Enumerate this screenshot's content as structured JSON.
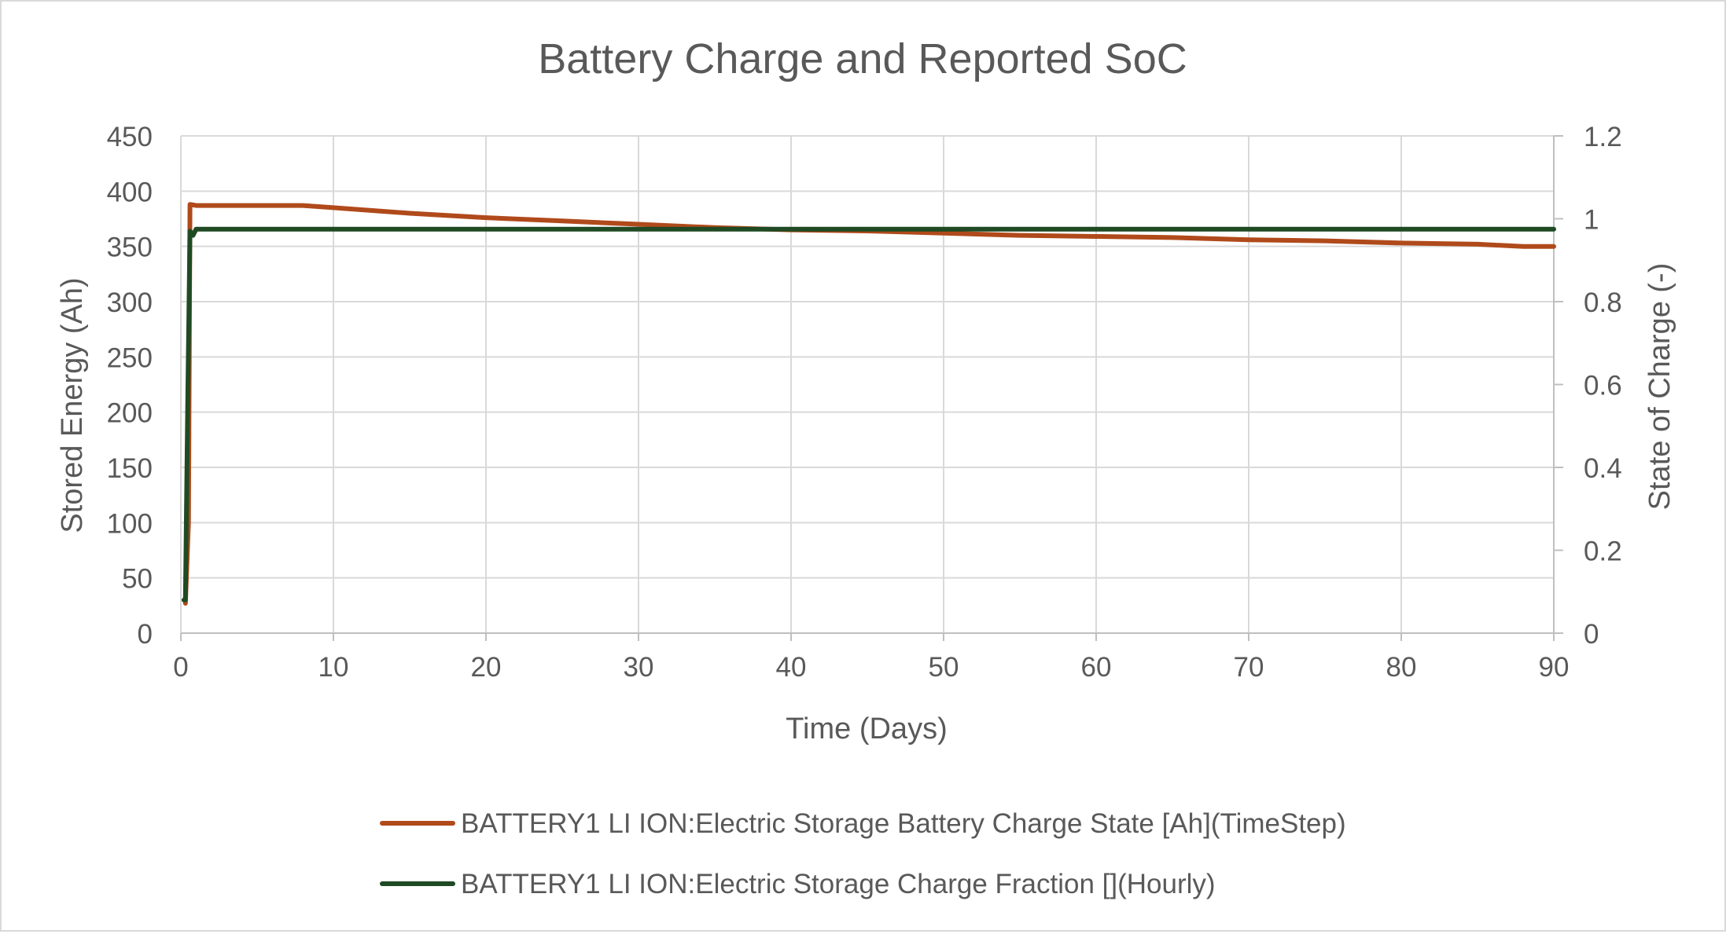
{
  "chart_data": {
    "type": "line",
    "title": "Battery Charge and Reported SoC",
    "xlabel": "Time (Days)",
    "ylabel": "Stored Energy (Ah)",
    "y2label": "State of Charge (-)",
    "xlim": [
      0,
      90
    ],
    "ylim": [
      0,
      450
    ],
    "y2lim": [
      0,
      1.2
    ],
    "x_ticks": [
      0,
      10,
      20,
      30,
      40,
      50,
      60,
      70,
      80,
      90
    ],
    "y_ticks": [
      0,
      50,
      100,
      150,
      200,
      250,
      300,
      350,
      400,
      450
    ],
    "y2_ticks": [
      "0",
      "0.2",
      "0.4",
      "0.6",
      "0.8",
      "1",
      "1.2"
    ],
    "grid": true,
    "legend_position": "bottom",
    "colors": {
      "charge_state": "#b04a1b",
      "charge_fraction": "#1f4a23",
      "grid": "#d9d9d9",
      "axis": "#bfbfbf",
      "text": "#595959"
    },
    "series": [
      {
        "name": "BATTERY1 LI ION:Electric Storage Battery Charge State [Ah](TimeStep)",
        "axis": "left",
        "color_key": "charge_state",
        "x": [
          0.3,
          0.5,
          0.6,
          1,
          5,
          8,
          9,
          10,
          15,
          20,
          25,
          30,
          35,
          40,
          45,
          50,
          55,
          60,
          65,
          70,
          75,
          80,
          85,
          88,
          89,
          90
        ],
        "y": [
          27,
          100,
          388,
          387,
          387,
          387,
          386,
          385,
          380,
          376,
          373,
          370,
          367,
          365,
          364,
          362,
          360,
          359,
          358,
          356,
          355,
          353,
          352,
          350,
          350,
          350
        ]
      },
      {
        "name": "BATTERY1 LI ION:Electric Storage Charge Fraction [](Hourly)",
        "axis": "right",
        "color_key": "charge_fraction",
        "x": [
          0.2,
          0.3,
          0.45,
          0.6,
          0.8,
          1.0,
          2,
          10,
          20,
          30,
          40,
          50,
          60,
          70,
          80,
          90
        ],
        "y": [
          0.08,
          0.08,
          0.55,
          0.97,
          0.96,
          0.975,
          0.975,
          0.975,
          0.975,
          0.975,
          0.975,
          0.975,
          0.975,
          0.975,
          0.975,
          0.975
        ]
      }
    ]
  }
}
